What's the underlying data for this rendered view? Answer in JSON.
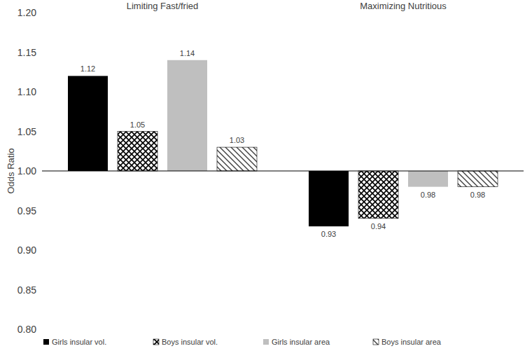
{
  "chart_data": {
    "type": "bar",
    "y_label": "Odds Ratio",
    "categories": [
      "Limiting Fast/fried",
      "Maximizing Nutritious"
    ],
    "series": [
      {
        "name": "Girls insular vol.",
        "color": "#000000",
        "values": [
          1.12,
          0.93
        ]
      },
      {
        "name": "Boys insular vol.",
        "color": "#000000",
        "values": [
          1.05,
          0.94
        ]
      },
      {
        "name": "Girls insular area",
        "color": "#bfbfbf",
        "values": [
          1.14,
          0.98
        ]
      },
      {
        "name": "Boys insular area",
        "color": "#404040",
        "values": [
          1.03,
          0.98
        ]
      }
    ],
    "baseline": 1,
    "ylim": [
      0.8,
      1.2
    ],
    "yticks": [
      {
        "value": 0.8,
        "label": "0.80"
      },
      {
        "value": 0.85,
        "label": "0.85"
      },
      {
        "value": 0.9,
        "label": "0.90"
      },
      {
        "value": 0.95,
        "label": "0.95"
      },
      {
        "value": 1.0,
        "label": "1.00"
      },
      {
        "value": 1.05,
        "label": "1.05"
      },
      {
        "value": 1.1,
        "label": "1.10"
      },
      {
        "value": 1.15,
        "label": "1.15"
      },
      {
        "value": 1.2,
        "label": "1.20"
      }
    ],
    "grid": false,
    "legend": "bottom",
    "data_labels": true
  }
}
